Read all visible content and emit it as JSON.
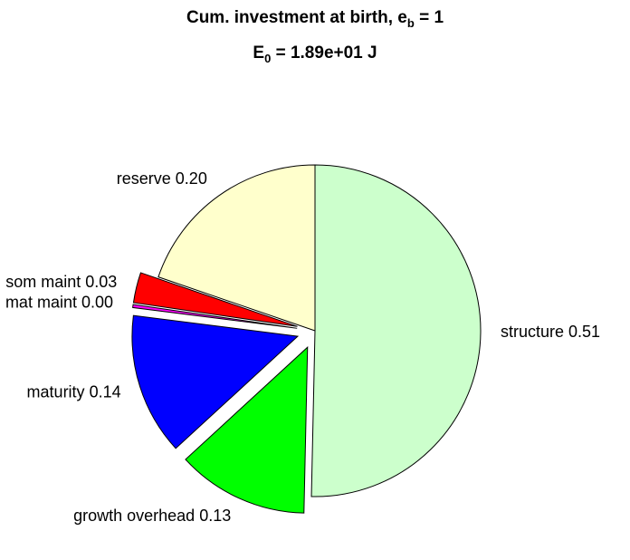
{
  "chart_data": {
    "type": "pie",
    "title": {
      "text": "Cum. investment at birth, e",
      "sub": "b",
      "tail": " = 1"
    },
    "subtitle": {
      "text": "E",
      "sub": "0",
      "tail": " = 1.89e+01 J"
    },
    "categories": [
      "structure",
      "growth overhead",
      "maturity",
      "mat maint",
      "som maint",
      "reserve"
    ],
    "values": [
      0.51,
      0.13,
      0.14,
      0.003,
      0.03,
      0.2
    ],
    "value_labels": [
      "0.51",
      "0.13",
      "0.14",
      "0.00",
      "0.03",
      "0.20"
    ],
    "colors": [
      "#ccffcc",
      "#00ff00",
      "#0000ff",
      "#ff00ff",
      "#ff0000",
      "#ffffcc"
    ],
    "explode": [
      false,
      true,
      true,
      true,
      true,
      false
    ]
  }
}
